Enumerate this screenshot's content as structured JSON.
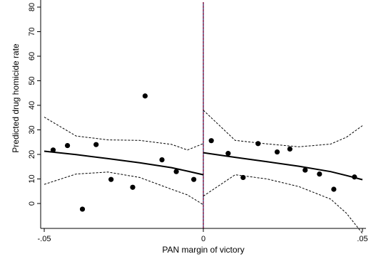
{
  "chart_data": {
    "type": "scatter",
    "title": "",
    "xlabel": "PAN margin of victory",
    "ylabel": "Predicted drug homicide rate",
    "xlim": [
      -0.05,
      0.05
    ],
    "ylim": [
      -10,
      80
    ],
    "x_ticks": [
      -0.05,
      0,
      0.05
    ],
    "x_tick_labels": [
      "-.05",
      "0",
      ".05"
    ],
    "y_ticks": [
      0,
      10,
      20,
      30,
      40,
      50,
      60,
      70,
      80
    ],
    "y_tick_labels": [
      "0",
      "10",
      "20",
      "30",
      "40",
      "50",
      "60",
      "70",
      "80"
    ],
    "grid": false,
    "cutoff": 0,
    "cutoff_line_color": "#8b1a4a",
    "points": [
      {
        "x": -0.0472,
        "y": 21.8
      },
      {
        "x": -0.0427,
        "y": 23.6
      },
      {
        "x": -0.038,
        "y": -2.3
      },
      {
        "x": -0.0337,
        "y": 24.0
      },
      {
        "x": -0.029,
        "y": 9.8
      },
      {
        "x": -0.0222,
        "y": 6.6
      },
      {
        "x": -0.0183,
        "y": 43.8
      },
      {
        "x": -0.013,
        "y": 17.8
      },
      {
        "x": -0.0085,
        "y": 13.0
      },
      {
        "x": -0.003,
        "y": 9.8
      },
      {
        "x": 0.0025,
        "y": 25.6
      },
      {
        "x": 0.0078,
        "y": 20.4
      },
      {
        "x": 0.0125,
        "y": 10.6
      },
      {
        "x": 0.0172,
        "y": 24.4
      },
      {
        "x": 0.0232,
        "y": 21.0
      },
      {
        "x": 0.0272,
        "y": 22.2
      },
      {
        "x": 0.032,
        "y": 13.6
      },
      {
        "x": 0.0365,
        "y": 12.0
      },
      {
        "x": 0.041,
        "y": 5.8
      },
      {
        "x": 0.0475,
        "y": 10.8
      }
    ],
    "fit_left": {
      "x": [
        -0.05,
        -0.04,
        -0.03,
        -0.02,
        -0.01,
        -0.005,
        0
      ],
      "fit": [
        21.3,
        19.9,
        18.3,
        16.6,
        14.6,
        13.2,
        11.7
      ],
      "upper": [
        35.2,
        27.5,
        25.9,
        25.7,
        24.1,
        21.8,
        24.4
      ],
      "lower": [
        7.8,
        12.0,
        12.8,
        10.6,
        5.8,
        3.5,
        -0.5
      ]
    },
    "fit_right": {
      "x": [
        0,
        0.01,
        0.02,
        0.03,
        0.04,
        0.045,
        0.05
      ],
      "fit": [
        20.7,
        18.8,
        17.0,
        15.2,
        13.0,
        11.4,
        9.7
      ],
      "upper": [
        38.0,
        25.7,
        24.3,
        23.1,
        24.2,
        27.0,
        31.7
      ],
      "lower": [
        3.0,
        11.7,
        10.0,
        6.9,
        1.8,
        -4.0,
        -12.2
      ]
    }
  }
}
